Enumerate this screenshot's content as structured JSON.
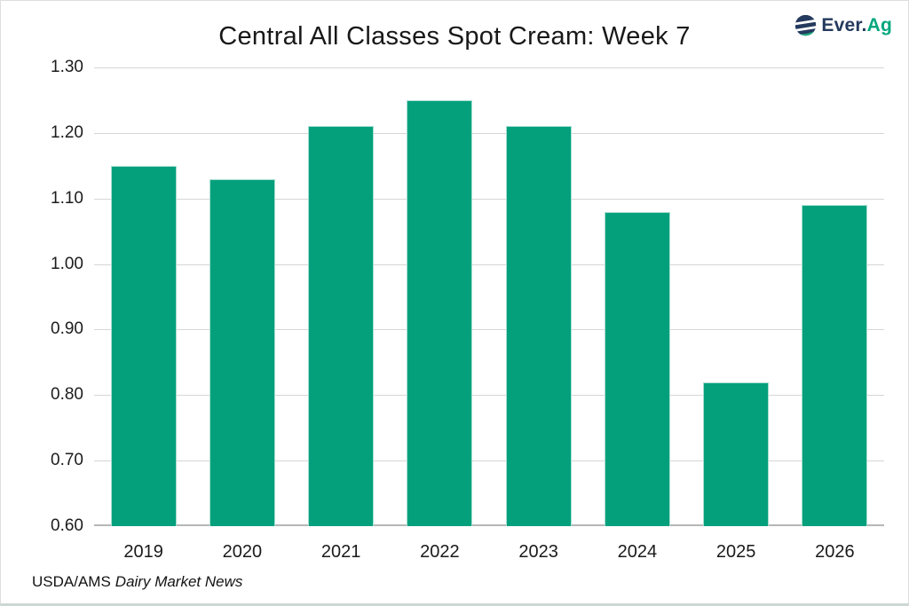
{
  "header": {
    "logo": {
      "text_primary": "Ever.",
      "text_accent": "Ag",
      "navy": "#243a5e",
      "green": "#00a77d"
    }
  },
  "chart_data": {
    "type": "bar",
    "title": "Central All Classes Spot Cream: Week 7",
    "categories": [
      "2019",
      "2020",
      "2021",
      "2022",
      "2023",
      "2024",
      "2025",
      "2026"
    ],
    "values": [
      1.15,
      1.13,
      1.21,
      1.25,
      1.21,
      1.08,
      0.82,
      1.09
    ],
    "xlabel": "",
    "ylabel": "",
    "ylim": [
      0.6,
      1.3
    ],
    "ytick_step": 0.1,
    "ytick_labels": [
      "1.30",
      "1.20",
      "1.10",
      "1.00",
      "0.90",
      "0.80",
      "0.70",
      "0.60"
    ],
    "grid": true,
    "legend_position": "none",
    "bar_color": "#04a07c",
    "grid_color": "#d6d6d6",
    "axis_line_color": "#b5b7b6"
  },
  "footer": {
    "source_prefix": "USDA/AMS",
    "source_name": "Dairy Market News"
  }
}
